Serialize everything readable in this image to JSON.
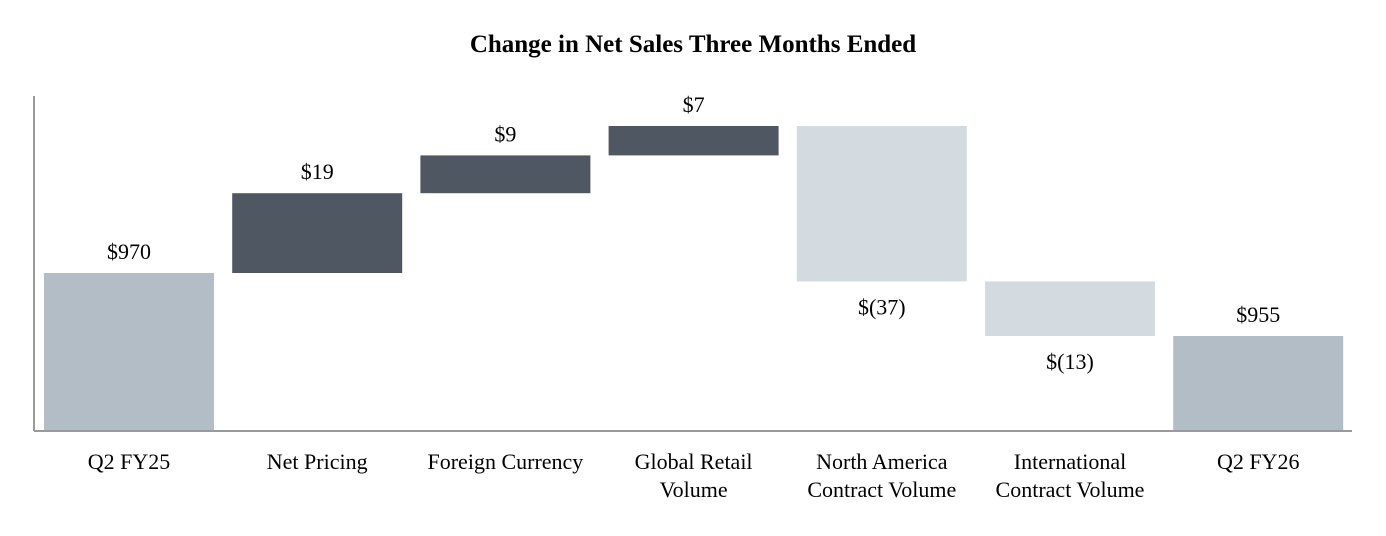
{
  "chart_data": {
    "type": "bar",
    "subtype": "waterfall",
    "title": "Change in Net Sales Three Months Ended",
    "categories": [
      [
        "Q2 FY25"
      ],
      [
        "Net Pricing"
      ],
      [
        "Foreign Currency"
      ],
      [
        "Global Retail",
        "Volume"
      ],
      [
        "North America",
        "Contract Volume"
      ],
      [
        "International",
        "Contract Volume"
      ],
      [
        "Q2 FY26"
      ]
    ],
    "values": [
      970,
      19,
      9,
      7,
      -37,
      -13,
      955
    ],
    "kinds": [
      "total",
      "increase",
      "increase",
      "increase",
      "decrease",
      "decrease",
      "total"
    ],
    "data_labels": [
      "$970",
      "$19",
      "$9",
      "$7",
      "$(37)",
      "$(13)",
      "$955"
    ],
    "colors": {
      "total": "#b3bdc6",
      "increase": "#4f5862",
      "decrease": "#d3dbe1",
      "axis": "#9a9a9a"
    },
    "grid": false,
    "legend": "none"
  }
}
